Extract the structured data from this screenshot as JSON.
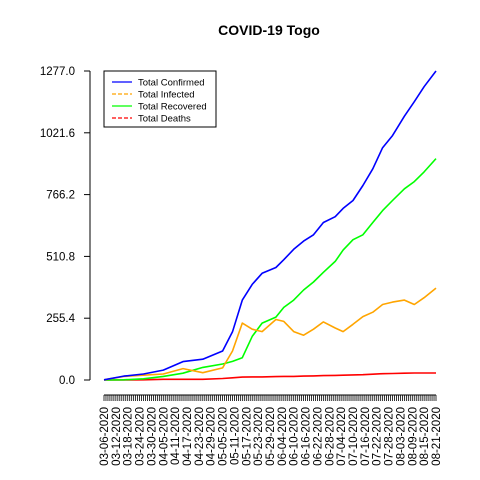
{
  "chart_data": {
    "type": "line",
    "title": "COVID-19 Togo",
    "xlabel": "",
    "ylabel": "",
    "ylim": [
      0,
      1277.0
    ],
    "yticks": [
      "0.0",
      "255.4",
      "510.8",
      "766.2",
      "1021.6",
      "1277.0"
    ],
    "legend_position": "top-left",
    "grid": false,
    "x_tick_labels": [
      "03-06-2020",
      "03-12-2020",
      "03-18-2020",
      "03-24-2020",
      "03-30-2020",
      "04-05-2020",
      "04-11-2020",
      "04-17-2020",
      "04-23-2020",
      "04-29-2020",
      "05-05-2020",
      "05-11-2020",
      "05-17-2020",
      "05-23-2020",
      "05-29-2020",
      "06-04-2020",
      "06-10-2020",
      "06-16-2020",
      "06-22-2020",
      "06-28-2020",
      "07-04-2020",
      "07-10-2020",
      "07-16-2020",
      "07-22-2020",
      "07-28-2020",
      "08-03-2020",
      "08-09-2020",
      "08-15-2020",
      "08-21-2020"
    ],
    "x_dates": [
      "2020-03-06",
      "2020-03-16",
      "2020-03-26",
      "2020-04-05",
      "2020-04-15",
      "2020-04-25",
      "2020-05-05",
      "2020-05-10",
      "2020-05-15",
      "2020-05-20",
      "2020-05-25",
      "2020-06-01",
      "2020-06-05",
      "2020-06-10",
      "2020-06-15",
      "2020-06-20",
      "2020-06-25",
      "2020-07-01",
      "2020-07-05",
      "2020-07-10",
      "2020-07-15",
      "2020-07-20",
      "2020-07-25",
      "2020-07-30",
      "2020-08-05",
      "2020-08-10",
      "2020-08-15",
      "2020-08-21"
    ],
    "series": [
      {
        "name": "Total Confirmed",
        "color": "#0000ff",
        "values": [
          1,
          16,
          25,
          41,
          76,
          86,
          120,
          199,
          330,
          395,
          441,
          465,
          497,
          540,
          574,
          600,
          651,
          675,
          709,
          742,
          804,
          873,
          960,
          1010,
          1090,
          1150,
          1212,
          1277
        ]
      },
      {
        "name": "Total Infected",
        "color": "#ffa500",
        "values": [
          1,
          15,
          20,
          25,
          47,
          30,
          50,
          120,
          235,
          210,
          200,
          250,
          242,
          200,
          185,
          210,
          240,
          215,
          200,
          230,
          262,
          280,
          312,
          322,
          330,
          312,
          340,
          380
        ]
      },
      {
        "name": "Total Recovered",
        "color": "#00ff00",
        "values": [
          0,
          1,
          5,
          15,
          28,
          52,
          66,
          77,
          92,
          180,
          235,
          260,
          300,
          330,
          372,
          405,
          445,
          490,
          537,
          580,
          600,
          651,
          700,
          742,
          790,
          820,
          860,
          915
        ]
      },
      {
        "name": "Total Deaths",
        "color": "#ff0000",
        "values": [
          0,
          0,
          1,
          3,
          3,
          3,
          6,
          9,
          12,
          13,
          13,
          14,
          15,
          15,
          16,
          17,
          18,
          19,
          20,
          21,
          22,
          24,
          26,
          27,
          28,
          29,
          29,
          29
        ]
      }
    ]
  }
}
